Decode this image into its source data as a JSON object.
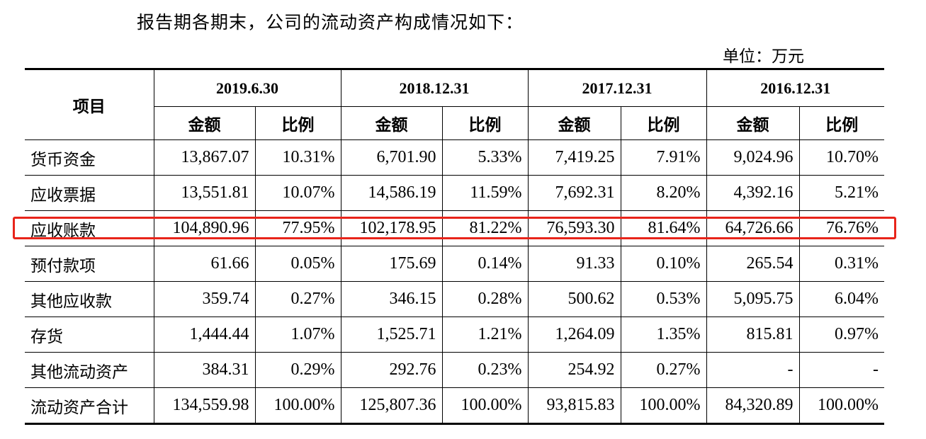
{
  "intro_text": "报告期各期末，公司的流动资产构成情况如下：",
  "unit_text": "单位：万元",
  "table": {
    "item_header": "项目",
    "periods": [
      "2019.6.30",
      "2018.12.31",
      "2017.12.31",
      "2016.12.31"
    ],
    "amount_header": "金额",
    "ratio_header": "比例",
    "rows": [
      {
        "label": "货币资金",
        "cells": [
          "13,867.07",
          "10.31%",
          "6,701.90",
          "5.33%",
          "7,419.25",
          "7.91%",
          "9,024.96",
          "10.70%"
        ]
      },
      {
        "label": "应收票据",
        "cells": [
          "13,551.81",
          "10.07%",
          "14,586.19",
          "11.59%",
          "7,692.31",
          "8.20%",
          "4,392.16",
          "5.21%"
        ]
      },
      {
        "label": "应收账款",
        "cells": [
          "104,890.96",
          "77.95%",
          "102,178.95",
          "81.22%",
          "76,593.30",
          "81.64%",
          "64,726.66",
          "76.76%"
        ]
      },
      {
        "label": "预付款项",
        "cells": [
          "61.66",
          "0.05%",
          "175.69",
          "0.14%",
          "91.33",
          "0.10%",
          "265.54",
          "0.31%"
        ]
      },
      {
        "label": "其他应收款",
        "cells": [
          "359.74",
          "0.27%",
          "346.15",
          "0.28%",
          "500.62",
          "0.53%",
          "5,095.75",
          "6.04%"
        ]
      },
      {
        "label": "存货",
        "cells": [
          "1,444.44",
          "1.07%",
          "1,525.71",
          "1.21%",
          "1,264.09",
          "1.35%",
          "815.81",
          "0.97%"
        ]
      },
      {
        "label": "其他流动资产",
        "cells": [
          "384.31",
          "0.29%",
          "292.76",
          "0.23%",
          "254.92",
          "0.27%",
          "-",
          "-"
        ]
      },
      {
        "label": "流动资产合计",
        "cells": [
          "134,559.98",
          "100.00%",
          "125,807.36",
          "100.00%",
          "93,815.83",
          "100.00%",
          "84,320.89",
          "100.00%"
        ]
      }
    ]
  },
  "highlight": {
    "row_label": "应收账款",
    "color": "#e8241a"
  }
}
